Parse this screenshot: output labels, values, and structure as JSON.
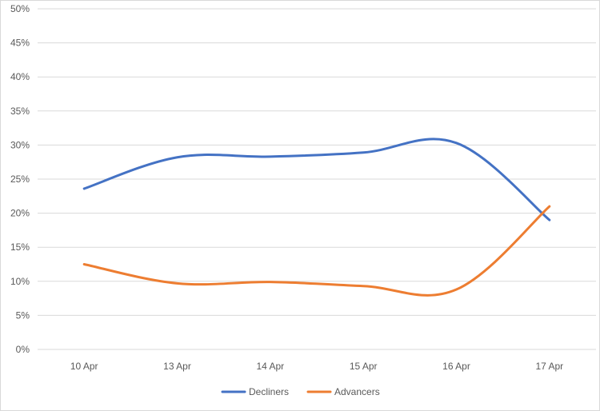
{
  "chart_data": {
    "type": "line",
    "categories": [
      "10 Apr",
      "13 Apr",
      "14 Apr",
      "15 Apr",
      "16 Apr",
      "17 Apr"
    ],
    "series": [
      {
        "name": "Decliners",
        "color": "#4472C4",
        "values": [
          0.236,
          0.282,
          0.283,
          0.289,
          0.303,
          0.19
        ]
      },
      {
        "name": "Advancers",
        "color": "#ED7D31",
        "values": [
          0.125,
          0.097,
          0.099,
          0.093,
          0.088,
          0.21
        ]
      }
    ],
    "yticks": [
      "0%",
      "5%",
      "10%",
      "15%",
      "20%",
      "25%",
      "30%",
      "35%",
      "40%",
      "45%",
      "50%"
    ],
    "ylim": [
      0,
      0.5
    ],
    "grid": true,
    "legend_position": "bottom"
  }
}
